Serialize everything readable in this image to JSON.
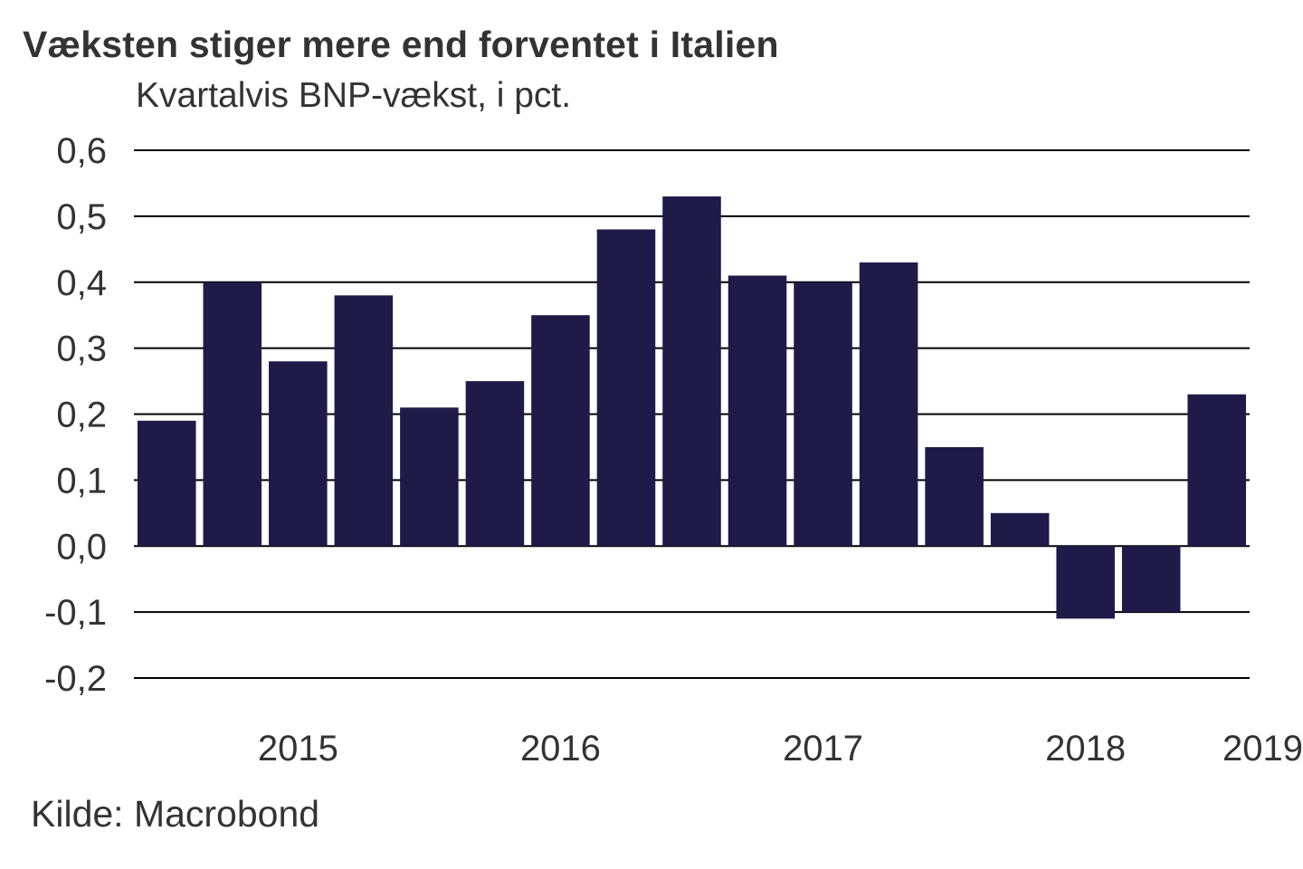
{
  "chart_data": {
    "type": "bar",
    "title": "Væksten stiger mere end forventet i Italien",
    "subtitle": "Kvartalvis BNP-vækst, i pct.",
    "source": "Kilde: Macrobond",
    "xlabel": "",
    "ylabel": "Kvartalvis BNP-vækst, i pct.",
    "ylim": [
      -0.2,
      0.6
    ],
    "yticks": [
      0.6,
      0.5,
      0.4,
      0.3,
      0.2,
      0.1,
      0.0,
      -0.1,
      -0.2
    ],
    "ytick_labels": [
      "0,6",
      "0,5",
      "0,4",
      "0,3",
      "0,2",
      "0,1",
      "0,0",
      "-0,1",
      "-0,2"
    ],
    "grid": true,
    "bar_color": "#201a48",
    "categories": [
      "2015 Q1",
      "2015 Q2",
      "2015 Q3",
      "2015 Q4",
      "2016 Q1",
      "2016 Q2",
      "2016 Q3",
      "2016 Q4",
      "2017 Q1",
      "2017 Q2",
      "2017 Q3",
      "2017 Q4",
      "2018 Q1",
      "2018 Q2",
      "2018 Q3",
      "2018 Q4",
      "2019 Q1"
    ],
    "values": [
      0.19,
      0.4,
      0.28,
      0.38,
      0.21,
      0.25,
      0.35,
      0.48,
      0.53,
      0.41,
      0.4,
      0.43,
      0.15,
      0.05,
      -0.11,
      -0.1,
      0.23
    ],
    "xtick_labels": [
      {
        "label": "2015",
        "at_index": 2
      },
      {
        "label": "2016",
        "at_index": 6
      },
      {
        "label": "2017",
        "at_index": 10
      },
      {
        "label": "2018",
        "at_index": 14
      },
      {
        "label": "2019",
        "at_index": 16.7
      }
    ]
  }
}
